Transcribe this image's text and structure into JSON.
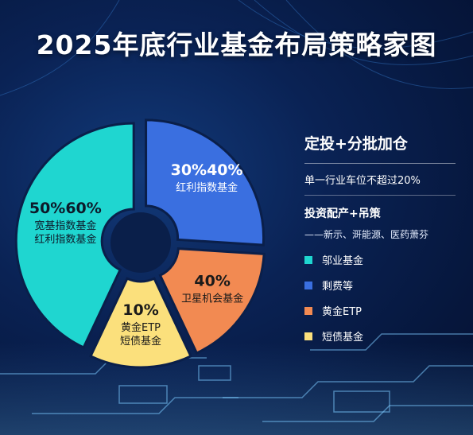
{
  "title": "2025年底行业基金布局策略家图",
  "chart_data": {
    "type": "pie",
    "slices": [
      {
        "label": "30%40%",
        "sublabel": "红利指数基金",
        "value": 26,
        "color": "#3a6fe0",
        "text_color": "#ffffff"
      },
      {
        "label": "40%",
        "sublabel": "卫星机会基金",
        "value": 17,
        "color": "#f28a52",
        "text_color": "#1a1a1a"
      },
      {
        "label": "10%",
        "sublabel": "黄金ETP\n短债基金",
        "value": 14,
        "color": "#fbe07c",
        "text_color": "#1a1a1a"
      },
      {
        "label": "50%60%",
        "sublabel": "宽基指数基金\n红利指数基金",
        "value": 43,
        "color": "#1fd6d0",
        "text_color": "#0d1a2a"
      }
    ]
  },
  "panel": {
    "heading": "定投+分批加仓",
    "rule_text": "单一行业车位不超过20%",
    "strategy": "投资配产+吊策",
    "sectors": "——新示、涆能源、医药萧芬",
    "legend": [
      {
        "label": "邬业基金",
        "color": "#1fd6d0"
      },
      {
        "label": "剩费等",
        "color": "#3a6fe0"
      },
      {
        "label": "黄金ETP",
        "color": "#f28a52"
      },
      {
        "label": "短债基金",
        "color": "#fbe07c"
      }
    ]
  }
}
